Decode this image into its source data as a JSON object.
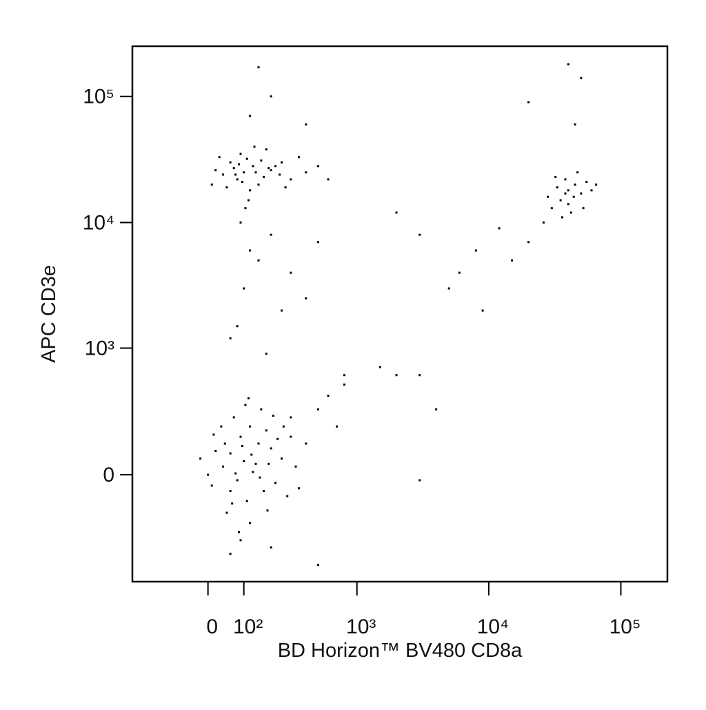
{
  "chart_data": {
    "type": "scatter",
    "x_label": "BD Horizon™ BV480 CD8a",
    "y_label": "APC CD3e",
    "xscale": "biex",
    "yscale": "biex",
    "color": "#000000",
    "xlim": [
      -260,
      225000
    ],
    "ylim": [
      -690,
      250000
    ],
    "xticks": [
      0,
      {
        "value": 100,
        "label": "10²"
      },
      {
        "value": 1000,
        "label": "10³"
      },
      {
        "value": 10000,
        "label": "10⁴"
      },
      {
        "value": 100000,
        "label": "10⁵"
      }
    ],
    "yticks": [
      0,
      {
        "value": 1000,
        "label": "10³"
      },
      {
        "value": 10000,
        "label": "10⁴"
      },
      {
        "value": 100000,
        "label": "10⁵"
      }
    ],
    "x": [
      60,
      100,
      150,
      80,
      120,
      200,
      40,
      90,
      170,
      250,
      130,
      70,
      110,
      300,
      20,
      160,
      220,
      50,
      140,
      95,
      180,
      60,
      280,
      35,
      400,
      120,
      75,
      210,
      10,
      330,
      185,
      105,
      45,
      260,
      155,
      85,
      500,
      15,
      230,
      125,
      65,
      350,
      190,
      0,
      -20,
      115,
      300,
      600,
      800,
      700,
      100,
      80,
      130,
      60,
      150,
      200,
      40,
      90,
      120,
      250,
      170,
      70,
      110,
      300,
      20,
      180,
      140,
      50,
      220,
      95,
      160,
      400,
      30,
      115,
      75,
      270,
      190,
      85,
      600,
      10,
      350,
      135,
      500,
      105,
      240,
      40000,
      35000,
      45000,
      30000,
      38000,
      50000,
      42000,
      33000,
      55000,
      28000,
      47000,
      36000,
      60000,
      40000,
      44000,
      32000,
      38000,
      52000,
      26000,
      65000,
      150,
      100,
      200,
      80,
      250,
      120,
      300,
      60,
      180,
      400,
      90,
      500,
      2000,
      3000,
      5000,
      8000,
      12000,
      20000,
      15000,
      9000,
      3000,
      1500,
      800,
      4000,
      3000,
      2000,
      6000,
      150,
      200,
      120,
      40000,
      20000,
      50000,
      45000,
      400,
      60,
      500,
      200,
      90
    ],
    "values": [
      80,
      50,
      120,
      -20,
      200,
      100,
      30,
      150,
      -60,
      60,
      10,
      250,
      -100,
      150,
      90,
      300,
      -30,
      -150,
      40,
      110,
      180,
      -60,
      -80,
      200,
      120,
      -200,
      5,
      260,
      -40,
      30,
      -140,
      330,
      120,
      200,
      -10,
      -250,
      300,
      160,
      140,
      75,
      -110,
      -50,
      40,
      0,
      60,
      380,
      250,
      400,
      500,
      200,
      25000,
      22000,
      28000,
      30000,
      20000,
      26000,
      24000,
      35000,
      18000,
      30000,
      23000,
      27000,
      32000,
      22000,
      26000,
      38000,
      25000,
      19000,
      28000,
      21000,
      31000,
      25000,
      33000,
      15000,
      24000,
      19000,
      27000,
      29000,
      22000,
      20000,
      33000,
      40000,
      28000,
      13000,
      24000,
      18000,
      15000,
      20000,
      13000,
      22000,
      17000,
      12000,
      19000,
      21000,
      16000,
      25000,
      11000,
      18000,
      14000,
      16000,
      23000,
      17000,
      13000,
      10000,
      20000,
      5000,
      3000,
      8000,
      1500,
      2000,
      6000,
      4000,
      1200,
      900,
      2500,
      10000,
      7000,
      12000,
      8000,
      3000,
      6000,
      9000,
      7000,
      5000,
      2000,
      600,
      700,
      600,
      300,
      -20,
      600,
      4000,
      170000,
      100000,
      70000,
      180000,
      90000,
      140000,
      60000,
      60000,
      -400,
      -500,
      -350,
      -300
    ]
  }
}
